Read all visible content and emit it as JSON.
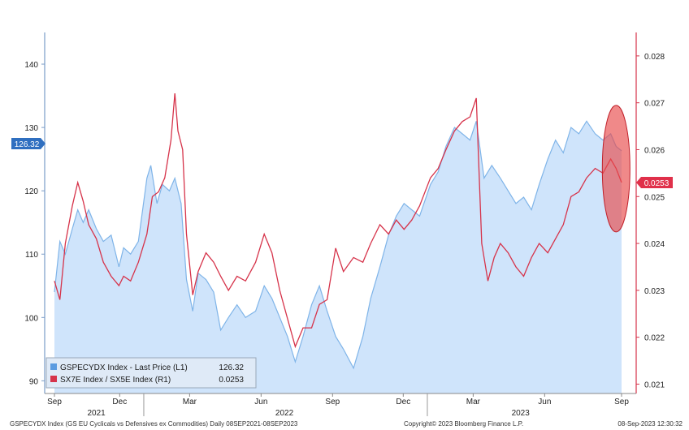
{
  "chart_data": {
    "type": "line",
    "left_axis": {
      "ticks": [
        "90",
        "100",
        "110",
        "120",
        "130",
        "140"
      ],
      "ylim": [
        88,
        145
      ]
    },
    "right_axis": {
      "ticks": [
        "0.021",
        "0.022",
        "0.023",
        "0.024",
        "0.025",
        "0.026",
        "0.027",
        "0.028"
      ],
      "ylim": [
        0.0208,
        0.0285
      ]
    },
    "x_ticks": [
      "Sep",
      "Dec",
      "Mar",
      "Jun",
      "Sep",
      "Dec",
      "Mar",
      "Jun",
      "Sep"
    ],
    "year_labels": [
      "2021",
      "2022",
      "2023"
    ],
    "x_range": [
      "2021-09-08",
      "2023-09-08"
    ],
    "series": [
      {
        "name": "GSPECYDX Index - Last Price (L1)",
        "axis": "left",
        "style": "area",
        "color": "#7fb4e8",
        "fill": "#cfe4fb",
        "last": "126.32",
        "points": [
          [
            "2021-09-08",
            104
          ],
          [
            "2021-09-15",
            112
          ],
          [
            "2021-09-22",
            110
          ],
          [
            "2021-10-01",
            114
          ],
          [
            "2021-10-08",
            117
          ],
          [
            "2021-10-15",
            115
          ],
          [
            "2021-10-22",
            117
          ],
          [
            "2021-11-01",
            114
          ],
          [
            "2021-11-10",
            112
          ],
          [
            "2021-11-20",
            113
          ],
          [
            "2021-11-30",
            108
          ],
          [
            "2021-12-06",
            111
          ],
          [
            "2021-12-15",
            110
          ],
          [
            "2021-12-25",
            112
          ],
          [
            "2022-01-05",
            122
          ],
          [
            "2022-01-10",
            124
          ],
          [
            "2022-01-18",
            118
          ],
          [
            "2022-01-25",
            121
          ],
          [
            "2022-02-03",
            120
          ],
          [
            "2022-02-10",
            122
          ],
          [
            "2022-02-18",
            118
          ],
          [
            "2022-02-25",
            106
          ],
          [
            "2022-03-05",
            101
          ],
          [
            "2022-03-12",
            107
          ],
          [
            "2022-03-22",
            106
          ],
          [
            "2022-04-01",
            104
          ],
          [
            "2022-04-10",
            98
          ],
          [
            "2022-04-20",
            100
          ],
          [
            "2022-05-01",
            102
          ],
          [
            "2022-05-12",
            100
          ],
          [
            "2022-05-25",
            101
          ],
          [
            "2022-06-05",
            105
          ],
          [
            "2022-06-15",
            103
          ],
          [
            "2022-06-25",
            100
          ],
          [
            "2022-07-05",
            97
          ],
          [
            "2022-07-15",
            93
          ],
          [
            "2022-07-25",
            97
          ],
          [
            "2022-08-05",
            102
          ],
          [
            "2022-08-15",
            105
          ],
          [
            "2022-08-25",
            101
          ],
          [
            "2022-09-05",
            97
          ],
          [
            "2022-09-15",
            95
          ],
          [
            "2022-09-28",
            92
          ],
          [
            "2022-10-10",
            97
          ],
          [
            "2022-10-20",
            103
          ],
          [
            "2022-11-01",
            108
          ],
          [
            "2022-11-12",
            113
          ],
          [
            "2022-11-22",
            116
          ],
          [
            "2022-12-02",
            118
          ],
          [
            "2022-12-12",
            117
          ],
          [
            "2022-12-22",
            116
          ],
          [
            "2023-01-05",
            121
          ],
          [
            "2023-01-15",
            123
          ],
          [
            "2023-01-25",
            127
          ],
          [
            "2023-02-05",
            130
          ],
          [
            "2023-02-15",
            129
          ],
          [
            "2023-02-25",
            128
          ],
          [
            "2023-03-05",
            131
          ],
          [
            "2023-03-15",
            122
          ],
          [
            "2023-03-25",
            124
          ],
          [
            "2023-04-05",
            122
          ],
          [
            "2023-04-15",
            120
          ],
          [
            "2023-04-25",
            118
          ],
          [
            "2023-05-05",
            119
          ],
          [
            "2023-05-15",
            117
          ],
          [
            "2023-05-25",
            121
          ],
          [
            "2023-06-05",
            125
          ],
          [
            "2023-06-15",
            128
          ],
          [
            "2023-06-25",
            126
          ],
          [
            "2023-07-05",
            130
          ],
          [
            "2023-07-15",
            129
          ],
          [
            "2023-07-25",
            131
          ],
          [
            "2023-08-05",
            129
          ],
          [
            "2023-08-15",
            128
          ],
          [
            "2023-08-25",
            129
          ],
          [
            "2023-09-01",
            127
          ],
          [
            "2023-09-08",
            126.32
          ]
        ]
      },
      {
        "name": "SX7E Index / SX5E Index (R1)",
        "axis": "right",
        "style": "line",
        "color": "#d6334a",
        "last": "0.0253",
        "points": [
          [
            "2021-09-08",
            0.0232
          ],
          [
            "2021-09-15",
            0.0228
          ],
          [
            "2021-09-22",
            0.024
          ],
          [
            "2021-10-01",
            0.0248
          ],
          [
            "2021-10-08",
            0.0253
          ],
          [
            "2021-10-15",
            0.0249
          ],
          [
            "2021-10-22",
            0.0244
          ],
          [
            "2021-11-01",
            0.0241
          ],
          [
            "2021-11-10",
            0.0236
          ],
          [
            "2021-11-20",
            0.0233
          ],
          [
            "2021-11-30",
            0.0231
          ],
          [
            "2021-12-06",
            0.0233
          ],
          [
            "2021-12-15",
            0.0232
          ],
          [
            "2021-12-25",
            0.0236
          ],
          [
            "2022-01-05",
            0.0242
          ],
          [
            "2022-01-12",
            0.025
          ],
          [
            "2022-01-20",
            0.0251
          ],
          [
            "2022-01-28",
            0.0254
          ],
          [
            "2022-02-05",
            0.0262
          ],
          [
            "2022-02-10",
            0.0272
          ],
          [
            "2022-02-14",
            0.0264
          ],
          [
            "2022-02-20",
            0.026
          ],
          [
            "2022-02-25",
            0.0242
          ],
          [
            "2022-03-05",
            0.0229
          ],
          [
            "2022-03-12",
            0.0234
          ],
          [
            "2022-03-22",
            0.0238
          ],
          [
            "2022-04-01",
            0.0236
          ],
          [
            "2022-04-10",
            0.0233
          ],
          [
            "2022-04-20",
            0.023
          ],
          [
            "2022-05-01",
            0.0233
          ],
          [
            "2022-05-12",
            0.0232
          ],
          [
            "2022-05-25",
            0.0236
          ],
          [
            "2022-06-05",
            0.0242
          ],
          [
            "2022-06-15",
            0.0238
          ],
          [
            "2022-06-25",
            0.023
          ],
          [
            "2022-07-05",
            0.0224
          ],
          [
            "2022-07-15",
            0.0218
          ],
          [
            "2022-07-25",
            0.0222
          ],
          [
            "2022-08-05",
            0.0222
          ],
          [
            "2022-08-15",
            0.0227
          ],
          [
            "2022-08-25",
            0.0228
          ],
          [
            "2022-09-05",
            0.0239
          ],
          [
            "2022-09-15",
            0.0234
          ],
          [
            "2022-09-28",
            0.0237
          ],
          [
            "2022-10-10",
            0.0236
          ],
          [
            "2022-10-20",
            0.024
          ],
          [
            "2022-11-01",
            0.0244
          ],
          [
            "2022-11-12",
            0.0242
          ],
          [
            "2022-11-22",
            0.0245
          ],
          [
            "2022-12-02",
            0.0243
          ],
          [
            "2022-12-12",
            0.0245
          ],
          [
            "2022-12-22",
            0.0248
          ],
          [
            "2023-01-05",
            0.0254
          ],
          [
            "2023-01-15",
            0.0256
          ],
          [
            "2023-01-25",
            0.026
          ],
          [
            "2023-02-05",
            0.0264
          ],
          [
            "2023-02-15",
            0.0266
          ],
          [
            "2023-02-25",
            0.0267
          ],
          [
            "2023-03-05",
            0.0271
          ],
          [
            "2023-03-12",
            0.024
          ],
          [
            "2023-03-20",
            0.0232
          ],
          [
            "2023-03-28",
            0.0237
          ],
          [
            "2023-04-05",
            0.024
          ],
          [
            "2023-04-15",
            0.0238
          ],
          [
            "2023-04-25",
            0.0235
          ],
          [
            "2023-05-05",
            0.0233
          ],
          [
            "2023-05-15",
            0.0237
          ],
          [
            "2023-05-25",
            0.024
          ],
          [
            "2023-06-05",
            0.0238
          ],
          [
            "2023-06-15",
            0.0241
          ],
          [
            "2023-06-25",
            0.0244
          ],
          [
            "2023-07-05",
            0.025
          ],
          [
            "2023-07-15",
            0.0251
          ],
          [
            "2023-07-25",
            0.0254
          ],
          [
            "2023-08-05",
            0.0256
          ],
          [
            "2023-08-15",
            0.0255
          ],
          [
            "2023-08-25",
            0.0258
          ],
          [
            "2023-09-01",
            0.0256
          ],
          [
            "2023-09-08",
            0.0253
          ]
        ]
      }
    ],
    "highlight": {
      "type": "ellipse",
      "date": "2023-09-01",
      "y_center": 123.5,
      "color": "#e84a4a"
    },
    "grid": false
  },
  "legend": [
    {
      "label": "GSPECYDX Index - Last Price (L1)",
      "value": "126.32",
      "color": "#5b9be0"
    },
    {
      "label": "SX7E Index / SX5E Index (R1)",
      "value": "0.0253",
      "color": "#d6334a"
    }
  ],
  "last_value_tags": {
    "left": "126.32",
    "right": "0.0253"
  },
  "footer": {
    "left": "GSPECYDX Index (GS EU Cyclicals vs Defensives ex Commodities) Daily 08SEP2021-08SEP2023",
    "center": "Copyright© 2023 Bloomberg Finance L.P.",
    "right": "08-Sep-2023 12:30:32"
  }
}
